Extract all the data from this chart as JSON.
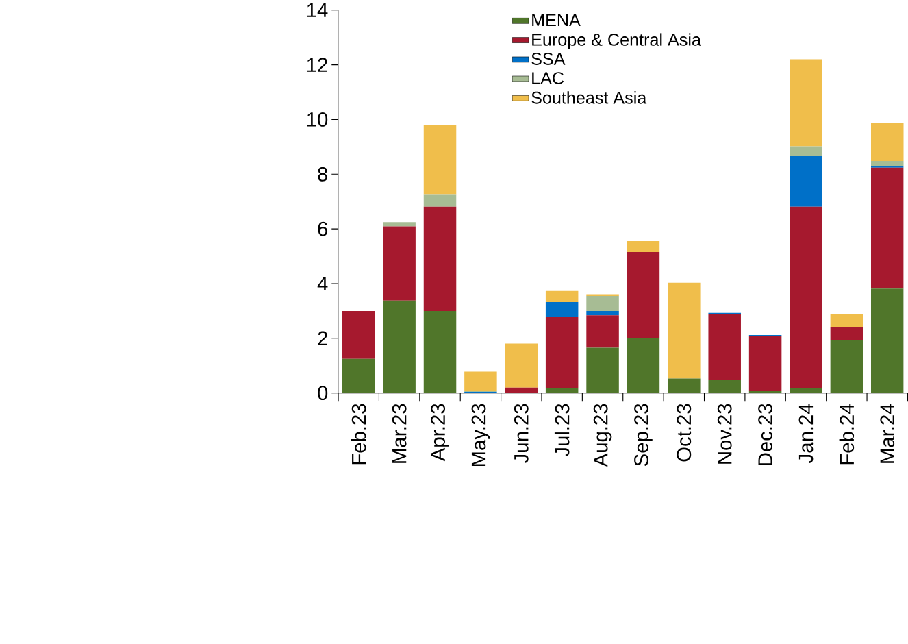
{
  "chart_data": {
    "type": "bar",
    "stacked": true,
    "categories": [
      "Feb.23",
      "Mar.23",
      "Apr.23",
      "May.23",
      "Jun.23",
      "Jul.23",
      "Aug.23",
      "Sep.23",
      "Oct.23",
      "Nov.23",
      "Dec.23",
      "Jan.24",
      "Feb.24",
      "Mar.24"
    ],
    "series": [
      {
        "name": "MENA",
        "color": "#50762a",
        "values": [
          1.25,
          3.38,
          3.0,
          0,
          0,
          0.18,
          1.66,
          2.01,
          0.53,
          0.49,
          0.08,
          0.18,
          1.92,
          3.82
        ]
      },
      {
        "name": "Europe & Central Asia",
        "color": "#a6192e",
        "values": [
          1.75,
          2.71,
          3.81,
          0,
          0.2,
          2.61,
          1.18,
          3.14,
          0,
          2.4,
          1.99,
          6.63,
          0.49,
          4.42
        ]
      },
      {
        "name": "SSA",
        "color": "#0070c8",
        "values": [
          0,
          0,
          0,
          0.04,
          0,
          0.53,
          0.16,
          0,
          0,
          0.04,
          0.05,
          1.86,
          0,
          0.06
        ]
      },
      {
        "name": "LAC",
        "color": "#a7bc94",
        "values": [
          0,
          0.16,
          0.46,
          0.03,
          0,
          0,
          0.55,
          0,
          0,
          0,
          0,
          0.35,
          0,
          0.18
        ]
      },
      {
        "name": "Southeast Asia",
        "color": "#f0be4b",
        "values": [
          0,
          0,
          2.52,
          0.71,
          1.61,
          0.41,
          0.06,
          0.4,
          3.5,
          0,
          0,
          3.18,
          0.48,
          1.39
        ]
      }
    ],
    "ylim": [
      0,
      14
    ],
    "yticks": [
      0,
      2,
      4,
      6,
      8,
      10,
      12,
      14
    ],
    "legend": "top"
  }
}
